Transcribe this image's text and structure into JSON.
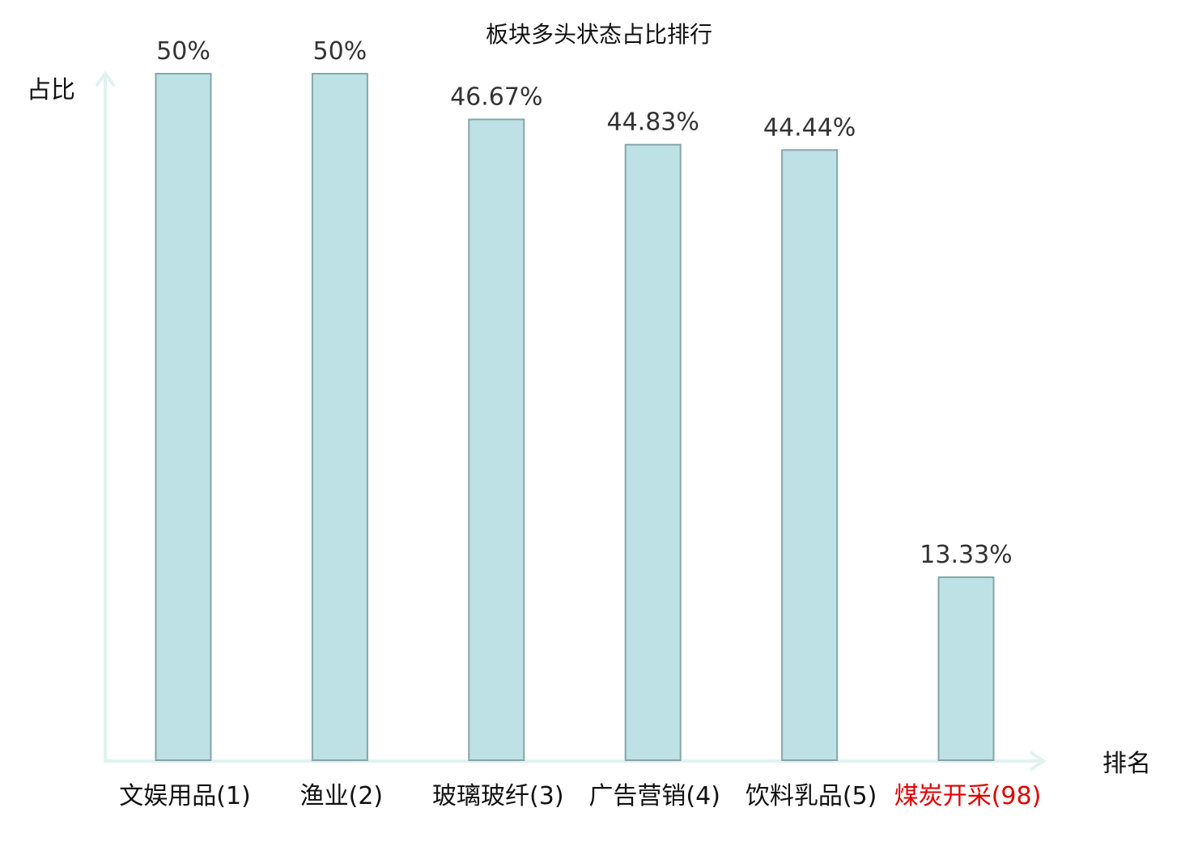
{
  "chart_data": {
    "type": "bar",
    "title": "板块多头状态占比排行",
    "xlabel": "排名",
    "ylabel": "占比",
    "categories": [
      "文娱用品(1)",
      "渔业(2)",
      "玻璃玻纤(3)",
      "广告营销(4)",
      "饮料乳品(5)",
      "煤炭开采(98)"
    ],
    "values": [
      50,
      50,
      46.67,
      44.83,
      44.44,
      13.33
    ],
    "value_labels": [
      "50%",
      "50%",
      "46.67%",
      "44.83%",
      "44.44%",
      "13.33%"
    ],
    "highlight": [
      false,
      false,
      false,
      false,
      false,
      true
    ],
    "ylim": [
      0,
      50
    ],
    "grid": false,
    "legend": "none",
    "colors": {
      "bar_fill": "#bde1e4",
      "bar_stroke": "#86a6a8",
      "axis": "#e0f2f0",
      "label": "#111111",
      "value_label": "#333333",
      "highlight_label": "#e00000"
    }
  }
}
